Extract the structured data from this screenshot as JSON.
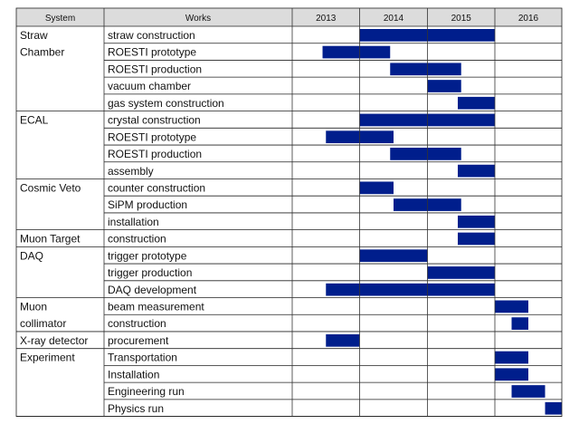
{
  "chart_data": {
    "type": "table",
    "headers": {
      "system": "System",
      "works": "Works"
    },
    "years": [
      "2013",
      "2014",
      "2015",
      "2016"
    ],
    "bar_color": "#001e8c",
    "header_color": "#dcdcdc",
    "groups": [
      {
        "system": [
          "Straw",
          "Chamber"
        ],
        "rows": [
          {
            "work": "straw construction",
            "start": 2014.0,
            "end": 2016.0
          },
          {
            "work": "ROESTI prototype",
            "start": 2013.45,
            "end": 2014.45
          },
          {
            "work": "ROESTI production",
            "start": 2014.45,
            "end": 2015.5
          },
          {
            "work": "vacuum chamber",
            "start": 2015.0,
            "end": 2015.5
          },
          {
            "work": "gas system construction",
            "start": 2015.45,
            "end": 2016.0
          }
        ]
      },
      {
        "system": [
          "ECAL"
        ],
        "rows": [
          {
            "work": "crystal construction",
            "start": 2014.0,
            "end": 2016.0
          },
          {
            "work": "ROESTI prototype",
            "start": 2013.5,
            "end": 2014.5
          },
          {
            "work": "ROESTI production",
            "start": 2014.45,
            "end": 2015.5
          },
          {
            "work": "assembly",
            "start": 2015.45,
            "end": 2016.0
          }
        ]
      },
      {
        "system": [
          "Cosmic Veto"
        ],
        "rows": [
          {
            "work": "counter construction",
            "start": 2014.0,
            "end": 2014.5
          },
          {
            "work": "SiPM production",
            "start": 2014.5,
            "end": 2015.5
          },
          {
            "work": "installation",
            "start": 2015.45,
            "end": 2016.0
          }
        ]
      },
      {
        "system": [
          "Muon Target"
        ],
        "rows": [
          {
            "work": "construction",
            "start": 2015.45,
            "end": 2016.0
          }
        ]
      },
      {
        "system": [
          "DAQ"
        ],
        "rows": [
          {
            "work": "trigger prototype",
            "start": 2014.0,
            "end": 2015.0
          },
          {
            "work": "trigger production",
            "start": 2015.0,
            "end": 2016.0
          },
          {
            "work": "DAQ development",
            "start": 2013.5,
            "end": 2016.0
          }
        ]
      },
      {
        "system": [
          "Muon",
          "collimator"
        ],
        "rows": [
          {
            "work": "beam measurement",
            "start": 2016.0,
            "end": 2016.5
          },
          {
            "work": "construction",
            "start": 2016.25,
            "end": 2016.5
          }
        ]
      },
      {
        "system": [
          "X-ray detector"
        ],
        "rows": [
          {
            "work": "procurement",
            "start": 2013.5,
            "end": 2014.0
          }
        ]
      },
      {
        "system": [
          "Experiment"
        ],
        "rows": [
          {
            "work": "Transportation",
            "start": 2016.0,
            "end": 2016.5
          },
          {
            "work": "Installation",
            "start": 2016.0,
            "end": 2016.5
          },
          {
            "work": "Engineering run",
            "start": 2016.25,
            "end": 2016.75
          },
          {
            "work": "Physics run",
            "start": 2016.75,
            "end": 2017.0
          }
        ]
      }
    ]
  }
}
